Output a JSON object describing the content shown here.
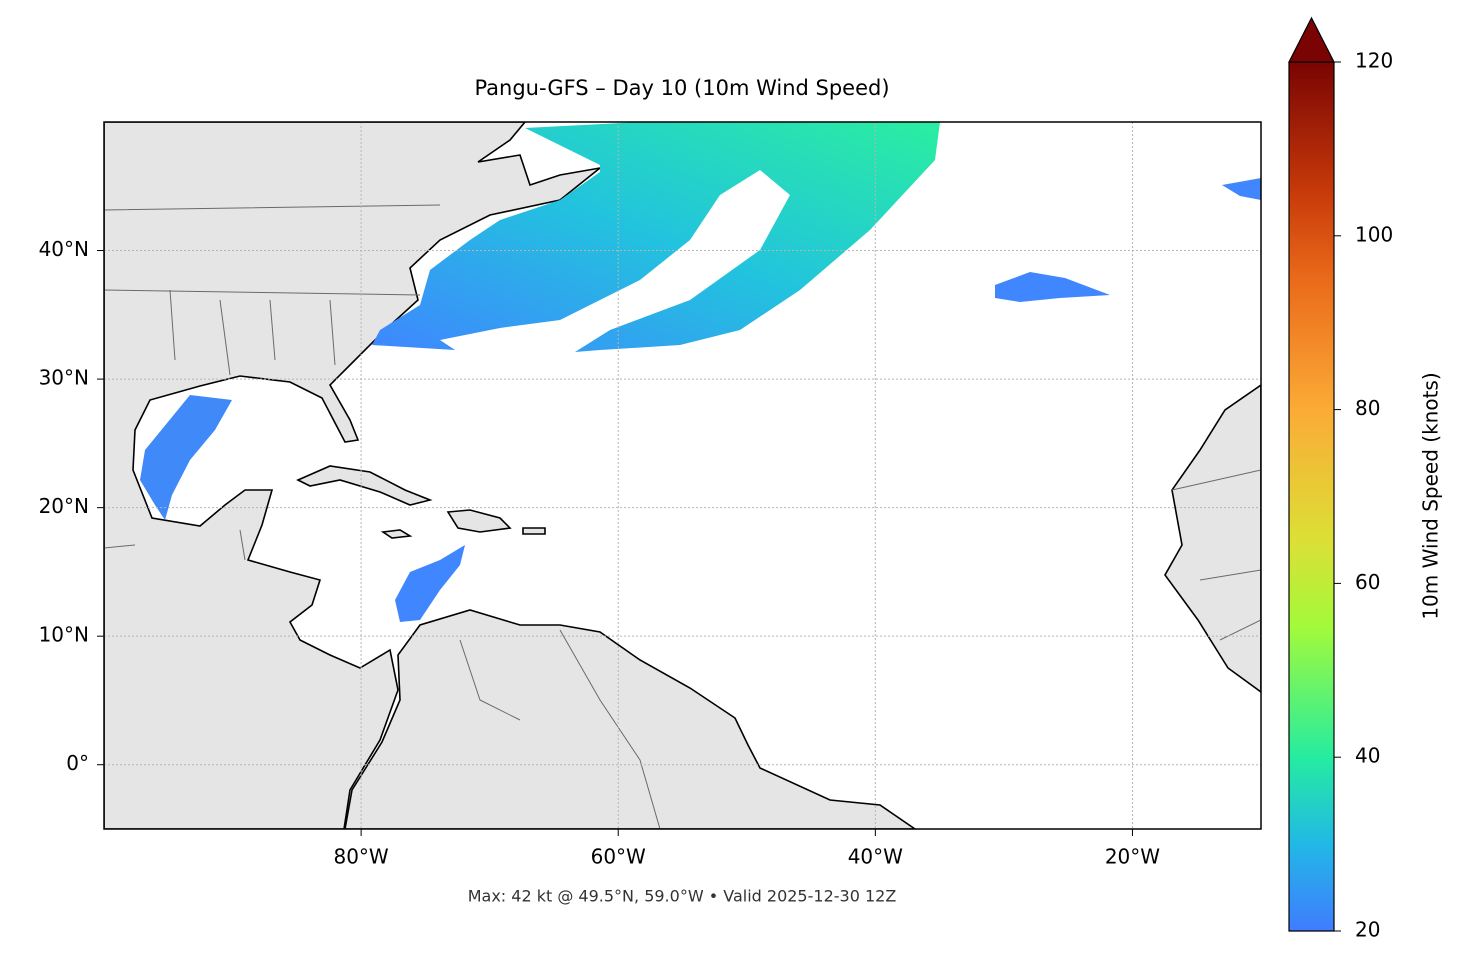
{
  "map": {
    "title": "Pangu-GFS – Day 10 (10m Wind Speed)",
    "xlim": [
      -100,
      -10
    ],
    "ylim": [
      -5,
      50
    ],
    "xticks": [
      {
        "value": -80,
        "label": "80°W"
      },
      {
        "value": -60,
        "label": "60°W"
      },
      {
        "value": -40,
        "label": "40°W"
      },
      {
        "value": -20,
        "label": "20°W"
      }
    ],
    "yticks": [
      {
        "value": 0,
        "label": "0°"
      },
      {
        "value": 10,
        "label": "10°N"
      },
      {
        "value": 20,
        "label": "20°N"
      },
      {
        "value": 30,
        "label": "30°N"
      },
      {
        "value": 40,
        "label": "40°N"
      }
    ],
    "grid": true,
    "footer": "Max: 42 kt @ 49.5°N, 59.0°W • Valid 2025-12-30 12Z"
  },
  "colorbar": {
    "label": "10m Wind Speed (knots)",
    "clim": [
      20,
      120
    ],
    "ticks": [
      20,
      40,
      60,
      80,
      100,
      120
    ],
    "extend": "max"
  }
}
